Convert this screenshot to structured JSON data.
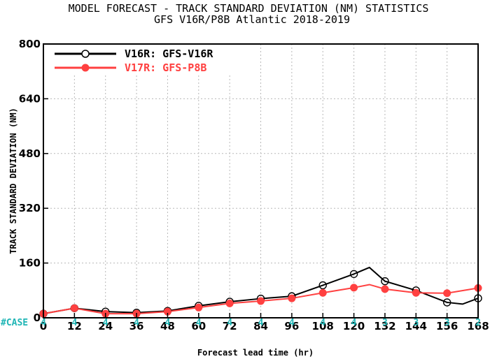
{
  "chart_data": {
    "type": "line",
    "title": "MODEL FORECAST - TRACK STANDARD DEVIATION (NM) STATISTICS",
    "subtitle": "GFS V16R/P8B Atlantic 2018-2019",
    "xlabel": "Forecast lead time (hr)",
    "ylabel": "TRACK STANDARD DEVIATION (NM)",
    "xlim": [
      0,
      168
    ],
    "ylim": [
      0,
      800
    ],
    "x_ticks": [
      0,
      12,
      24,
      36,
      48,
      60,
      72,
      84,
      96,
      108,
      120,
      132,
      144,
      156,
      168
    ],
    "y_ticks": [
      0,
      160,
      320,
      480,
      640,
      800
    ],
    "grid": true,
    "legend_position": "top-left",
    "case_label": "#CASE",
    "case_counts": [
      4,
      4,
      4,
      4,
      4,
      4,
      4,
      4,
      4,
      4,
      4,
      3,
      3,
      3,
      2
    ],
    "series": [
      {
        "name": "V16R: GFS-V16R",
        "color": "#000000",
        "x": [
          0,
          12,
          24,
          36,
          48,
          60,
          72,
          84,
          96,
          108,
          120,
          126,
          132,
          144,
          156,
          162,
          168
        ],
        "y": [
          12,
          28,
          18,
          15,
          20,
          35,
          47,
          56,
          63,
          95,
          128,
          147,
          107,
          80,
          45,
          40,
          57
        ],
        "markers": [
          1,
          1,
          1,
          1,
          1,
          1,
          1,
          1,
          1,
          1,
          1,
          0,
          1,
          1,
          1,
          0,
          1
        ]
      },
      {
        "name": "V17R: GFS-P8B",
        "color": "#ff4040",
        "x": [
          0,
          12,
          24,
          36,
          48,
          60,
          72,
          84,
          96,
          108,
          120,
          126,
          132,
          144,
          156,
          168
        ],
        "y": [
          12,
          28,
          12,
          12,
          18,
          30,
          42,
          49,
          57,
          73,
          88,
          97,
          84,
          73,
          72,
          87
        ],
        "markers": [
          1,
          1,
          1,
          1,
          1,
          1,
          1,
          1,
          1,
          1,
          1,
          0,
          1,
          1,
          1,
          1
        ]
      }
    ]
  }
}
